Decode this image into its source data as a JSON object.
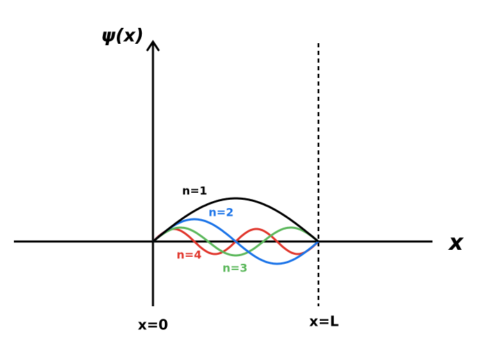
{
  "axes": {
    "y_label": "ψ(x)",
    "x_label": "x",
    "left_label": "x=0",
    "right_label": "x=L"
  },
  "curves": [
    {
      "label": "n=1"
    },
    {
      "label": "n=2"
    },
    {
      "label": "n=3"
    },
    {
      "label": "n=4"
    }
  ]
}
